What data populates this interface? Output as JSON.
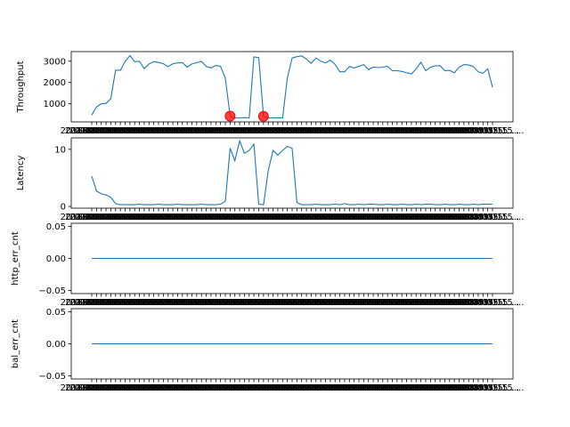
{
  "colors": {
    "line": "#1f77b4",
    "anomaly": "#ff0000",
    "axis": "#000000",
    "background": "#ffffff"
  },
  "x_tick_label": "2018-03-15 ...",
  "chart_data": [
    {
      "type": "line",
      "ylabel": "Throughput",
      "ylim": [
        150,
        3450
      ],
      "yticks": [
        1000,
        2000,
        3000
      ],
      "series": [
        {
          "values": [
            470,
            850,
            1000,
            1020,
            1240,
            2580,
            2570,
            2990,
            3260,
            2980,
            2990,
            2650,
            2870,
            2980,
            2940,
            2880,
            2740,
            2880,
            2920,
            2930,
            2720,
            2870,
            2930,
            2990,
            2750,
            2680,
            2800,
            2760,
            2200,
            420,
            330,
            340,
            350,
            330,
            3200,
            3170,
            410,
            330,
            340,
            340,
            330,
            2200,
            3150,
            3210,
            3250,
            3100,
            2900,
            3150,
            3000,
            2920,
            3050,
            2850,
            2500,
            2500,
            2750,
            2680,
            2760,
            2840,
            2600,
            2720,
            2700,
            2720,
            2760,
            2550,
            2550,
            2520,
            2450,
            2400,
            2640,
            2950,
            2550,
            2720,
            2780,
            2790,
            2550,
            2570,
            2450,
            2720,
            2840,
            2820,
            2750,
            2500,
            2430,
            2640,
            1770
          ]
        }
      ],
      "anomalies": [
        {
          "index": 29,
          "value": 420
        },
        {
          "index": 36,
          "value": 410
        }
      ]
    },
    {
      "type": "line",
      "ylabel": "Latency",
      "ylim": [
        -0.3,
        12
      ],
      "yticks": [
        0,
        10
      ],
      "series": [
        {
          "values": [
            5.3,
            2.7,
            2.2,
            2.0,
            1.6,
            0.5,
            0.3,
            0.3,
            0.3,
            0.3,
            0.4,
            0.3,
            0.3,
            0.3,
            0.4,
            0.3,
            0.3,
            0.3,
            0.4,
            0.3,
            0.3,
            0.3,
            0.3,
            0.4,
            0.3,
            0.3,
            0.3,
            0.4,
            0.9,
            10.2,
            8.0,
            11.5,
            9.3,
            9.8,
            10.9,
            0.4,
            0.3,
            6.3,
            9.8,
            9.0,
            9.8,
            10.5,
            10.2,
            0.7,
            0.3,
            0.3,
            0.3,
            0.4,
            0.3,
            0.3,
            0.3,
            0.4,
            0.3,
            0.5,
            0.3,
            0.3,
            0.4,
            0.3,
            0.4,
            0.4,
            0.3,
            0.3,
            0.4,
            0.3,
            0.3,
            0.4,
            0.3,
            0.3,
            0.4,
            0.3,
            0.4,
            0.4,
            0.3,
            0.3,
            0.4,
            0.3,
            0.3,
            0.4,
            0.3,
            0.3,
            0.4,
            0.3,
            0.4,
            0.4,
            0.4
          ]
        }
      ]
    },
    {
      "type": "line",
      "ylabel": "http_err_cnt",
      "ylim": [
        -0.055,
        0.055
      ],
      "yticks": [
        -0.05,
        0.0,
        0.05
      ],
      "yticklabels": [
        "−0.05",
        "0.00",
        "0.05"
      ],
      "series": [
        {
          "constant": 0
        }
      ]
    },
    {
      "type": "line",
      "ylabel": "bal_err_cnt",
      "ylim": [
        -0.055,
        0.055
      ],
      "yticks": [
        -0.05,
        0.0,
        0.05
      ],
      "yticklabels": [
        "−0.05",
        "0.00",
        "0.05"
      ],
      "series": [
        {
          "constant": 0
        }
      ]
    }
  ]
}
